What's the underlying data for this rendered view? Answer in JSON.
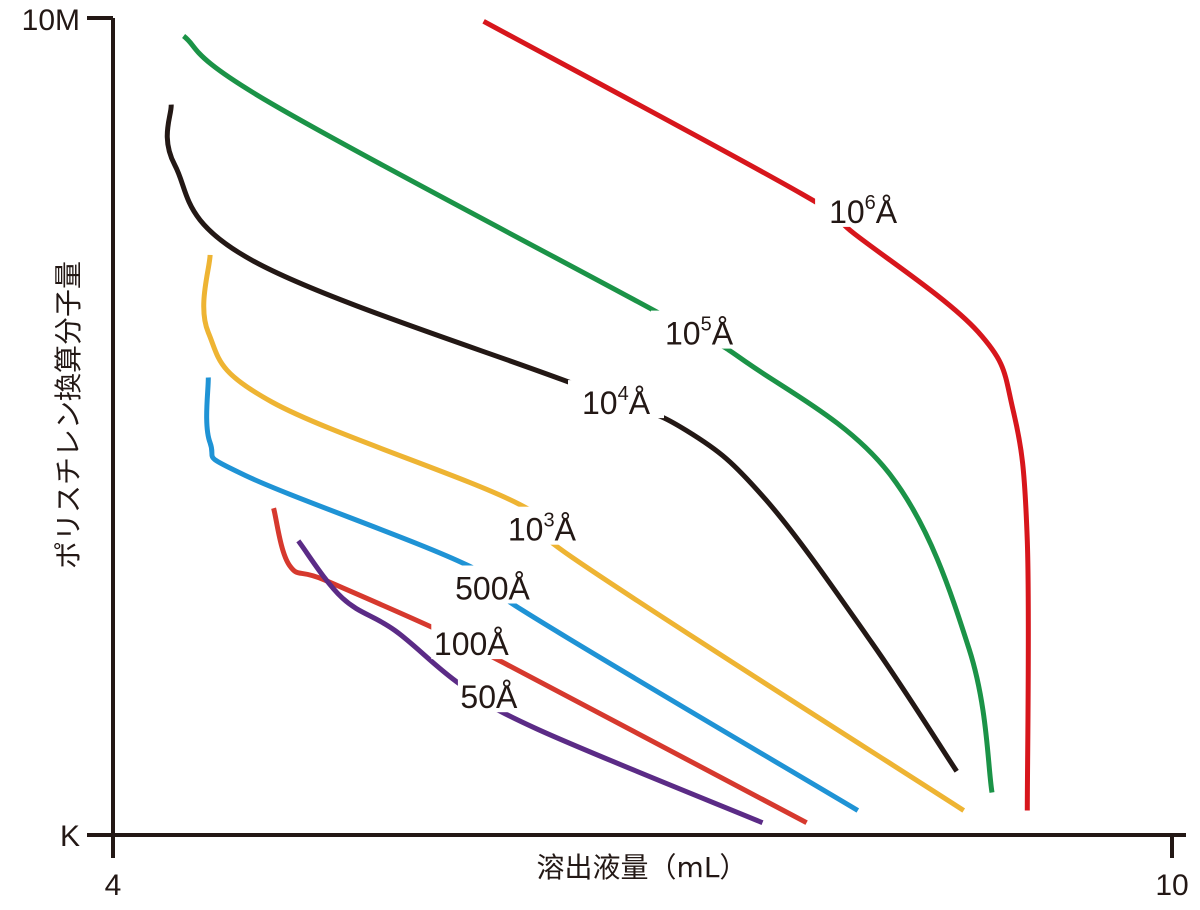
{
  "chart_data": {
    "type": "line",
    "xlabel": "溶出液量（mL）",
    "ylabel": "ポリスチレン換算分子量",
    "xlim": [
      4,
      10
    ],
    "ylim_ticks": [
      "K",
      "10M"
    ],
    "x_ticks": [
      "4",
      "10"
    ],
    "y_ticks": [
      "K",
      "10M"
    ],
    "grid": false,
    "legend": "inline",
    "series": [
      {
        "name_base": "10",
        "name_sup": "6",
        "name_unit": "Å",
        "color": "#d7161c",
        "points": [
          [
            6.1,
            9.96
          ],
          [
            7.9,
            7.85
          ],
          [
            8.2,
            7.36
          ],
          [
            8.9,
            6.16
          ],
          [
            9.1,
            5.2
          ],
          [
            9.18,
            3.6
          ],
          [
            9.18,
            0.3
          ]
        ]
      },
      {
        "name_base": "10",
        "name_sup": "5",
        "name_unit": "Å",
        "color": "#1b9347",
        "points": [
          [
            4.4,
            9.78
          ],
          [
            4.9,
            8.95
          ],
          [
            7.1,
            6.38
          ],
          [
            7.6,
            5.77
          ],
          [
            8.4,
            4.42
          ],
          [
            8.85,
            2.28
          ],
          [
            8.98,
            0.52
          ]
        ]
      },
      {
        "name_base": "10",
        "name_sup": "4",
        "name_unit": "Å",
        "color": "#231815",
        "points": [
          [
            4.33,
            8.94
          ],
          [
            4.35,
            8.2
          ],
          [
            4.8,
            7.02
          ],
          [
            6.66,
            5.48
          ],
          [
            7.25,
            4.95
          ],
          [
            7.7,
            4.1
          ],
          [
            8.3,
            2.35
          ],
          [
            8.78,
            0.78
          ]
        ]
      },
      {
        "name_base": "10",
        "name_sup": "3",
        "name_unit": "Å",
        "color": "#eeb433",
        "points": [
          [
            4.55,
            7.1
          ],
          [
            4.54,
            6.15
          ],
          [
            4.9,
            5.3
          ],
          [
            6.3,
            4.05
          ],
          [
            6.6,
            3.4
          ],
          [
            8.82,
            0.3
          ]
        ]
      },
      {
        "name_base": "500",
        "name_sup": "",
        "name_unit": "Å",
        "color": "#1f93d5",
        "points": [
          [
            4.54,
            5.6
          ],
          [
            4.55,
            4.8
          ],
          [
            4.75,
            4.4
          ],
          [
            6.01,
            3.3
          ],
          [
            6.32,
            2.75
          ],
          [
            8.22,
            0.3
          ]
        ]
      },
      {
        "name_base": "100",
        "name_sup": "",
        "name_unit": "Å",
        "color": "#d6392e",
        "points": [
          [
            4.91,
            4.0
          ],
          [
            5.0,
            3.3
          ],
          [
            5.2,
            3.12
          ],
          [
            5.83,
            2.52
          ],
          [
            6.22,
            2.1
          ],
          [
            7.93,
            0.15
          ]
        ]
      },
      {
        "name_base": "50",
        "name_sup": "",
        "name_unit": "Å",
        "color": "#5b2b86",
        "points": [
          [
            5.05,
            3.6
          ],
          [
            5.3,
            2.9
          ],
          [
            5.6,
            2.5
          ],
          [
            5.97,
            1.84
          ],
          [
            6.4,
            1.3
          ],
          [
            7.68,
            0.15
          ]
        ]
      }
    ],
    "labels": [
      {
        "series": 0,
        "at": [
          8.25,
          7.59
        ]
      },
      {
        "series": 1,
        "at": [
          7.32,
          6.1
        ]
      },
      {
        "series": 2,
        "at": [
          6.85,
          5.25
        ]
      },
      {
        "series": 3,
        "at": [
          6.43,
          3.7
        ]
      },
      {
        "series": 4,
        "at": [
          6.15,
          2.98
        ]
      },
      {
        "series": 5,
        "at": [
          6.03,
          2.3
        ]
      },
      {
        "series": 6,
        "at": [
          6.13,
          1.65
        ]
      }
    ]
  }
}
